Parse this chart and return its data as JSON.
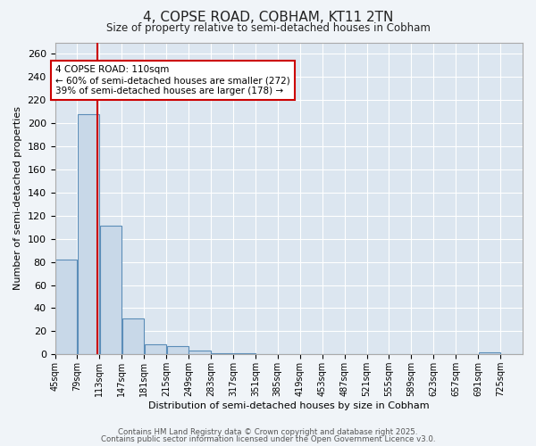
{
  "title1": "4, COPSE ROAD, COBHAM, KT11 2TN",
  "title2": "Size of property relative to semi-detached houses in Cobham",
  "xlabel": "Distribution of semi-detached houses by size in Cobham",
  "ylabel": "Number of semi-detached properties",
  "bin_labels": [
    "45sqm",
    "79sqm",
    "113sqm",
    "147sqm",
    "181sqm",
    "215sqm",
    "249sqm",
    "283sqm",
    "317sqm",
    "351sqm",
    "385sqm",
    "419sqm",
    "453sqm",
    "487sqm",
    "521sqm",
    "555sqm",
    "589sqm",
    "623sqm",
    "657sqm",
    "691sqm",
    "725sqm"
  ],
  "bin_edges": [
    45,
    79,
    113,
    147,
    181,
    215,
    249,
    283,
    317,
    351,
    385,
    419,
    453,
    487,
    521,
    555,
    589,
    623,
    657,
    691,
    725,
    759
  ],
  "bar_heights": [
    82,
    208,
    111,
    31,
    9,
    7,
    3,
    1,
    1,
    0,
    0,
    0,
    0,
    0,
    0,
    0,
    0,
    0,
    0,
    2,
    0
  ],
  "bar_color": "#c8d8e8",
  "bar_edge_color": "#5b8db8",
  "property_size": 110,
  "red_line_color": "#cc0000",
  "annotation_line1": "4 COPSE ROAD: 110sqm",
  "annotation_line2": "← 60% of semi-detached houses are smaller (272)",
  "annotation_line3": "39% of semi-detached houses are larger (178) →",
  "annotation_box_color": "#ffffff",
  "annotation_box_edge": "#cc0000",
  "ylim": [
    0,
    270
  ],
  "yticks": [
    0,
    20,
    40,
    60,
    80,
    100,
    120,
    140,
    160,
    180,
    200,
    220,
    240,
    260
  ],
  "plot_bg_color": "#dce6f0",
  "fig_bg_color": "#f0f4f8",
  "grid_color": "#ffffff",
  "footer1": "Contains HM Land Registry data © Crown copyright and database right 2025.",
  "footer2": "Contains public sector information licensed under the Open Government Licence v3.0."
}
